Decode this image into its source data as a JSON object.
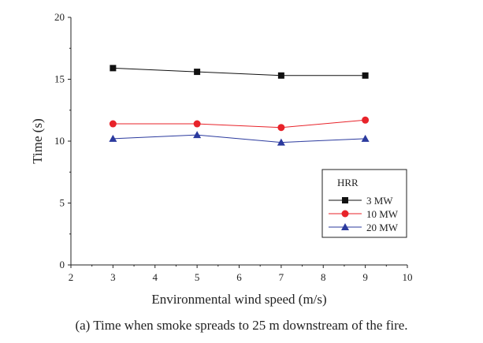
{
  "caption": "(a) Time when smoke spreads to 25 m downstream of the fire.",
  "chart_data": {
    "type": "line",
    "xlabel": "Environmental wind speed (m/s)",
    "ylabel": "Time (s)",
    "xlim": [
      2,
      10
    ],
    "ylim": [
      0,
      20
    ],
    "xticks": [
      2,
      3,
      4,
      5,
      6,
      7,
      8,
      9,
      10
    ],
    "yticks": [
      0,
      5,
      10,
      15,
      20
    ],
    "grid": false,
    "legend": {
      "title": "HRR",
      "placement": "right"
    },
    "series": [
      {
        "name": "3 MW",
        "marker": "square",
        "color": "#111111",
        "x": [
          3,
          5,
          7,
          9
        ],
        "y": [
          15.9,
          15.6,
          15.3,
          15.3
        ]
      },
      {
        "name": "10 MW",
        "marker": "circle",
        "color": "#e8232a",
        "x": [
          3,
          5,
          7,
          9
        ],
        "y": [
          11.4,
          11.4,
          11.1,
          11.7
        ]
      },
      {
        "name": "20 MW",
        "marker": "triangle",
        "color": "#2b3a9e",
        "x": [
          3,
          5,
          7,
          9
        ],
        "y": [
          10.2,
          10.5,
          9.9,
          10.2
        ]
      }
    ]
  }
}
